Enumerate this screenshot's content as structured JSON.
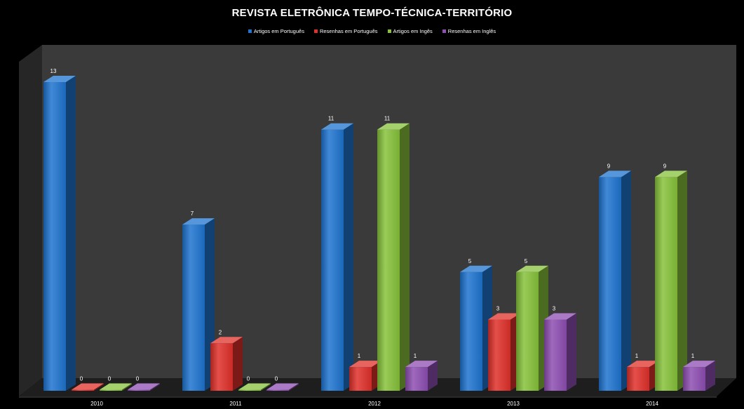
{
  "chart_data": {
    "type": "bar",
    "title": "REVISTA ELETRÔNICA TEMPO-TÉCNICA-TERRITÓRIO",
    "categories": [
      "2010",
      "2011",
      "2012",
      "2013",
      "2014"
    ],
    "series": [
      {
        "name": "Artigos em Português",
        "color": "#1e74d0",
        "values": [
          13,
          7,
          11,
          5,
          9
        ]
      },
      {
        "name": "Resenhas em Português",
        "color": "#e0302a",
        "values": [
          0,
          2,
          1,
          3,
          1
        ]
      },
      {
        "name": "Artigos em Ingês",
        "color": "#86c23a",
        "values": [
          0,
          0,
          11,
          5,
          9
        ]
      },
      {
        "name": "Resenhas em Inglês",
        "color": "#8e4eb3",
        "values": [
          0,
          0,
          1,
          3,
          1
        ]
      }
    ],
    "ylim": [
      0,
      13
    ],
    "grid": false,
    "legend_position": "top-center",
    "data_labels": true,
    "style": "3d-column",
    "colors": {
      "background": "#000000",
      "plot_wall": "#3a3a3a",
      "floor": "#1e1e1e",
      "text": "#ffffff"
    }
  }
}
